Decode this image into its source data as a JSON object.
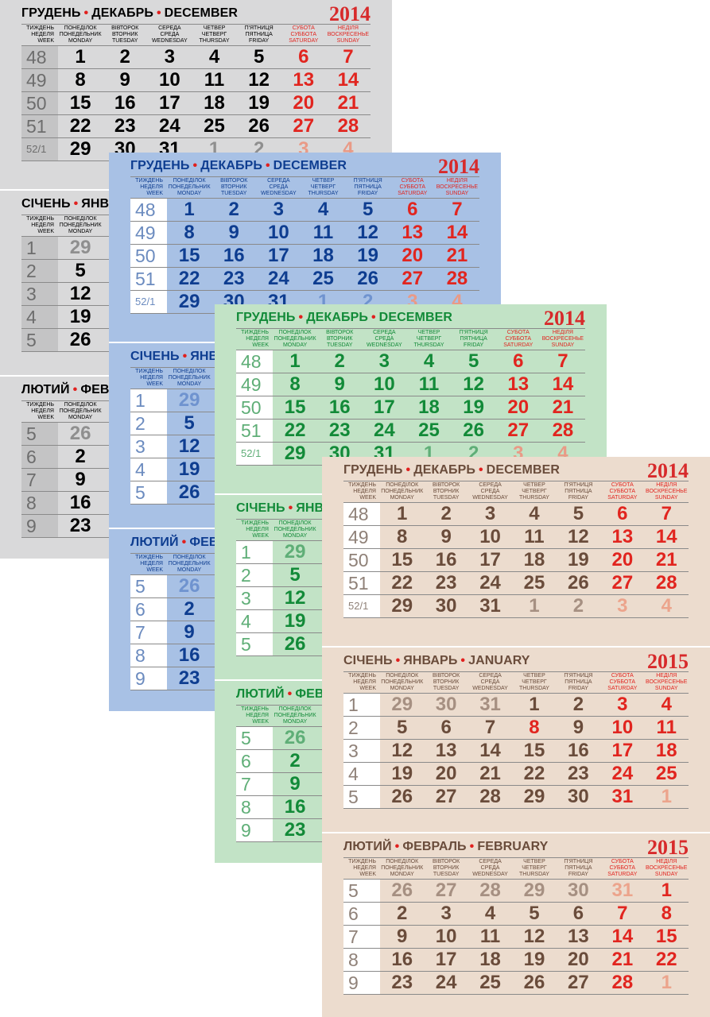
{
  "weekday_headers": [
    {
      "l1": "ПОНЕДІЛОК",
      "l2": "ПОНЕДЕЛЬНИК",
      "l3": "MONDAY"
    },
    {
      "l1": "ВІВТОРОК",
      "l2": "ВТОРНИК",
      "l3": "TUESDAY"
    },
    {
      "l1": "СЕРЕДА",
      "l2": "СРЕДА",
      "l3": "WEDNESDAY"
    },
    {
      "l1": "ЧЕТВЕР",
      "l2": "ЧЕТВЕРГ",
      "l3": "THURSDAY"
    },
    {
      "l1": "П'ЯТНИЦЯ",
      "l2": "ПЯТНИЦА",
      "l3": "FRIDAY"
    },
    {
      "l1": "СУБОТА",
      "l2": "СУББОТА",
      "l3": "SATURDAY"
    },
    {
      "l1": "НЕДІЛЯ",
      "l2": "ВОСКРЕСЕНЬЕ",
      "l3": "SUNDAY"
    }
  ],
  "week_header": {
    "l1": "ТИЖДЕНЬ",
    "l2": "НЕДЕЛЯ",
    "l3": "WEEK"
  },
  "months": {
    "dec": {
      "ua": "ГРУДЕНЬ",
      "ru": "ДЕКАБРЬ",
      "en": "DECEMBER",
      "year": "2014",
      "rows": [
        [
          "48",
          "1",
          "2",
          "3",
          "4",
          "5",
          "6",
          "7"
        ],
        [
          "49",
          "8",
          "9",
          "10",
          "11",
          "12",
          "13",
          "14"
        ],
        [
          "50",
          "15",
          "16",
          "17",
          "18",
          "19",
          "20",
          "21"
        ],
        [
          "51",
          "22",
          "23",
          "24",
          "25",
          "26",
          "27",
          "28"
        ],
        [
          "52/1",
          "29",
          "30",
          "31",
          "1",
          "2",
          "3",
          "4"
        ]
      ]
    },
    "jan": {
      "ua": "СІЧЕНЬ",
      "ru": "ЯНВАРЬ",
      "en": "JANUARY",
      "year": "2015",
      "rows": [
        [
          "1",
          "29",
          "30",
          "31",
          "1",
          "2",
          "3",
          "4"
        ],
        [
          "2",
          "5",
          "6",
          "7",
          "8",
          "9",
          "10",
          "11"
        ],
        [
          "3",
          "12",
          "13",
          "14",
          "15",
          "16",
          "17",
          "18"
        ],
        [
          "4",
          "19",
          "20",
          "21",
          "22",
          "23",
          "24",
          "25"
        ],
        [
          "5",
          "26",
          "27",
          "28",
          "29",
          "30",
          "31",
          "1"
        ]
      ]
    },
    "feb": {
      "ua": "ЛЮТИЙ",
      "ru": "ФЕВРАЛЬ",
      "en": "FEBRUARY",
      "year": "2015",
      "rows": [
        [
          "5",
          "26",
          "27",
          "28",
          "29",
          "30",
          "31",
          "1"
        ],
        [
          "6",
          "2",
          "3",
          "4",
          "5",
          "6",
          "7",
          "8"
        ],
        [
          "7",
          "9",
          "10",
          "11",
          "12",
          "13",
          "14",
          "15"
        ],
        [
          "8",
          "16",
          "17",
          "18",
          "19",
          "20",
          "21",
          "22"
        ],
        [
          "9",
          "23",
          "24",
          "25",
          "26",
          "27",
          "28",
          "1"
        ]
      ]
    }
  },
  "holiday_cells": {
    "jan": [
      [
        0,
        5
      ],
      [
        0,
        6
      ],
      [
        1,
        3
      ]
    ],
    "feb": [
      [
        4,
        6
      ]
    ]
  },
  "themes": {
    "gray": {
      "bg": "#d9d9da",
      "text": "#000000",
      "weekbg": "#c4c4c5",
      "weekfg": "#6d6d6d",
      "faded": "#8f8f8f",
      "red": "#e1251f",
      "faded_red": "#e99a86"
    },
    "blue": {
      "bg": "#a8c1e5",
      "text": "#0e3d90",
      "weekbg": "#ffffff",
      "weekfg": "#6b8bbf",
      "faded": "#6f93cf",
      "red": "#e1251f",
      "faded_red": "#e99a86"
    },
    "green": {
      "bg": "#c2e3c6",
      "text": "#128a38",
      "weekbg": "#ffffff",
      "weekfg": "#5fae77",
      "faded": "#5fae77",
      "red": "#e1251f",
      "faded_red": "#e99a86"
    },
    "beige": {
      "bg": "#ecdcce",
      "text": "#6a4c3b",
      "weekbg": "#ffffff",
      "weekfg": "#8f8178",
      "faded": "#a69082",
      "red": "#e1251f",
      "faded_red": "#eca48c"
    }
  },
  "sheets": [
    {
      "theme": "gray",
      "blocks": [
        "dec",
        "jan",
        "feb"
      ]
    },
    {
      "theme": "blue",
      "blocks": [
        "dec",
        "jan",
        "feb"
      ]
    },
    {
      "theme": "green",
      "blocks": [
        "dec",
        "jan",
        "feb"
      ]
    },
    {
      "theme": "beige",
      "blocks": [
        "dec",
        "jan",
        "feb"
      ]
    }
  ]
}
